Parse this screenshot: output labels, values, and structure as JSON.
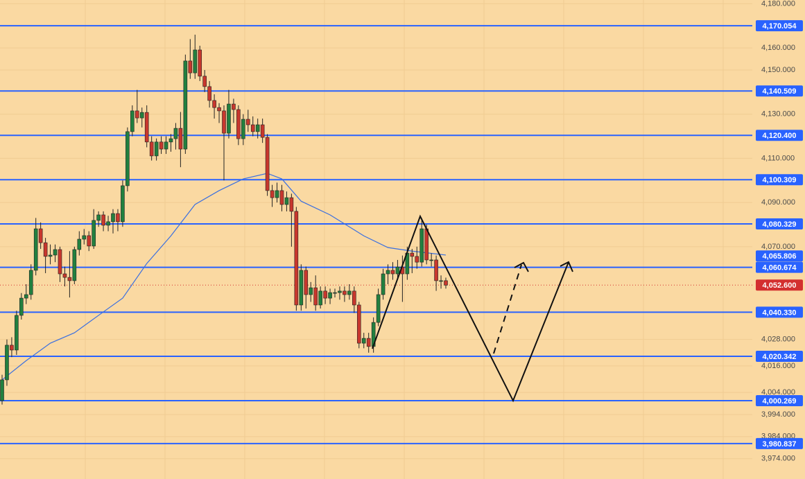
{
  "chart_data": {
    "type": "candlestick",
    "ylim": [
      3964.8,
      4181.7
    ],
    "yticks": [
      {
        "value": 4180,
        "label": "4,180.000"
      },
      {
        "value": 4160,
        "label": "4,160.000"
      },
      {
        "value": 4150,
        "label": "4,150.000"
      },
      {
        "value": 4130,
        "label": "4,130.000"
      },
      {
        "value": 4110,
        "label": "4,110.000"
      },
      {
        "value": 4090,
        "label": "4,090.000"
      },
      {
        "value": 4070,
        "label": "4,070.000"
      },
      {
        "value": 4028,
        "label": "4,028.000"
      },
      {
        "value": 4016,
        "label": "4,016.000"
      },
      {
        "value": 4004,
        "label": "4,004.000"
      },
      {
        "value": 3994,
        "label": "3,994.000"
      },
      {
        "value": 3984,
        "label": "3,984.000"
      },
      {
        "value": 3974,
        "label": "3,974.000"
      }
    ],
    "grid": true,
    "up_color": "#22803f",
    "down_color": "#c8372d",
    "open": [
      4000.3,
      4009.7,
      4025.4,
      4023.2,
      4038.9,
      4046.7,
      4048.3,
      4059.3,
      4078.1,
      4071.8,
      4065.6,
      4066.2,
      4068.7,
      4057.7,
      4056.1,
      4054.6,
      4068.7,
      4073.4,
      4075.0,
      4070.3,
      4081.9,
      4084.4,
      4079.7,
      4081.3,
      4085.0,
      4081.3,
      4097.6,
      4122.1,
      4131.5,
      4128.3,
      4130.8,
      4117.4,
      4111.1,
      4117.4,
      4114.2,
      4117.4,
      4118.9,
      4123.6,
      4114.2,
      4154.1,
      4148.7,
      4159.1,
      4147.2,
      4142.5,
      4136.2,
      4133.0,
      4131.5,
      4121.4,
      4134.6,
      4132.1,
      4118.9,
      4127.7,
      4125.2,
      4122.1,
      4125.2,
      4119.5,
      4095.4,
      4092.2,
      4095.4,
      4089.1,
      4092.2,
      4086.0,
      4043.6,
      4059.3,
      4048.3,
      4051.4,
      4043.6,
      4049.9,
      4046.7,
      4049.2,
      4049.2,
      4049.9,
      4048.3,
      4049.9,
      4043.6,
      4026.3,
      4028.5,
      4024.8,
      4035.7,
      4048.3,
      4057.7,
      4059.3,
      4057.7,
      4060.8,
      4057.7,
      4067.1,
      4065.6,
      4063.0,
      4078.1,
      4064.0,
      4064.0,
      4054.6,
      4054.6
    ],
    "high": [
      4012,
      4028,
      4029,
      4041,
      4049,
      4053,
      4062,
      4083,
      4081,
      4074,
      4071,
      4071,
      4070,
      4061,
      4068,
      4070,
      4077,
      4078,
      4077,
      4087,
      4086,
      4086,
      4084,
      4087,
      4087,
      4100,
      4124,
      4134,
      4141,
      4133,
      4134,
      4120,
      4119,
      4120,
      4120,
      4121,
      4126,
      4131,
      4157,
      4164,
      4166,
      4161,
      4150,
      4145,
      4139,
      4135,
      4134,
      4141,
      4137,
      4134,
      4130,
      4132,
      4129,
      4128,
      4128,
      4121,
      4098,
      4099,
      4098,
      4095,
      4094,
      4088,
      4062,
      4061,
      4054,
      4057,
      4052,
      4052,
      4051,
      4051,
      4052,
      4052,
      4053,
      4052,
      4045,
      4031,
      4031,
      4038,
      4051,
      4060,
      4062,
      4063,
      4064,
      4066,
      4070,
      4069,
      4070,
      4083,
      4080,
      4067,
      4066,
      4057,
      4056
    ],
    "low": [
      3998.5,
      4007,
      4020,
      4021,
      4037,
      4044,
      4046,
      4057,
      4069,
      4058,
      4062,
      4063,
      4054,
      4052,
      4047,
      4053,
      4066,
      4071,
      4068,
      4069,
      4079,
      4077,
      4077,
      4076,
      4077,
      4079,
      4095,
      4120,
      4126,
      4124,
      4115,
      4109,
      4109,
      4112,
      4112,
      4113,
      4114,
      4106,
      4112,
      4146,
      4146,
      4145,
      4140,
      4133,
      4128,
      4126,
      4100,
      4119,
      4126,
      4116,
      4116,
      4122,
      4120,
      4119,
      4117,
      4093,
      4088,
      4090,
      4086,
      4086,
      4070,
      4041,
      4041,
      4042,
      4045,
      4041,
      4042,
      4044,
      4044,
      4047,
      4046,
      4045,
      4046,
      4040,
      4024,
      4024,
      4022,
      4022,
      4034,
      4046,
      4053,
      4055,
      4055,
      4045,
      4055,
      4058,
      4060,
      4061,
      4062,
      4061,
      4050,
      4051,
      4051
    ],
    "close": [
      4009.7,
      4025.4,
      4023.2,
      4038.9,
      4046.7,
      4048.3,
      4059.3,
      4078.1,
      4071.8,
      4065.6,
      4066.2,
      4068.7,
      4057.7,
      4056.1,
      4054.6,
      4068.7,
      4073.4,
      4075.0,
      4070.3,
      4081.9,
      4084.4,
      4079.7,
      4081.3,
      4085.0,
      4081.3,
      4097.6,
      4122.1,
      4131.5,
      4128.3,
      4130.8,
      4117.4,
      4111.1,
      4117.4,
      4114.2,
      4117.4,
      4118.9,
      4123.6,
      4114.2,
      4154.1,
      4148.7,
      4159.1,
      4147.2,
      4142.5,
      4136.2,
      4133.0,
      4131.5,
      4121.4,
      4134.6,
      4132.1,
      4118.9,
      4127.7,
      4125.2,
      4122.1,
      4125.2,
      4119.5,
      4095.4,
      4092.2,
      4095.4,
      4089.1,
      4092.2,
      4086.0,
      4043.6,
      4059.3,
      4048.3,
      4051.4,
      4043.6,
      4049.9,
      4046.7,
      4049.2,
      4049.2,
      4049.9,
      4048.3,
      4049.9,
      4043.6,
      4026.3,
      4028.5,
      4024.8,
      4035.7,
      4048.3,
      4057.7,
      4059.3,
      4057.7,
      4060.8,
      4057.7,
      4067.1,
      4065.6,
      4063.0,
      4078.1,
      4064.0,
      4064.0,
      4054.6,
      4054.6,
      4052.6
    ],
    "moving_average": {
      "color": "#3a6fe0",
      "x": [
        0,
        5,
        10,
        15,
        20,
        25,
        30,
        35,
        40,
        45,
        50,
        55,
        58,
        62,
        68,
        75,
        80,
        85,
        92
      ],
      "values": [
        4009.7,
        4018.4,
        4026.3,
        4031.0,
        4038.9,
        4046.7,
        4062.4,
        4074.9,
        4089.1,
        4095.4,
        4100.7,
        4103.2,
        4100.7,
        4090.6,
        4084.4,
        4074.9,
        4069.6,
        4068.0,
        4066.2
      ],
      "label": {
        "value": 4065.806,
        "label": "4,065.806"
      }
    },
    "levels": [
      {
        "value": 4170.054,
        "label": "4,170.054"
      },
      {
        "value": 4140.509,
        "label": "4,140.509"
      },
      {
        "value": 4120.4,
        "label": "4,120.400"
      },
      {
        "value": 4100.309,
        "label": "4,100.309"
      },
      {
        "value": 4080.329,
        "label": "4,080.329"
      },
      {
        "value": 4060.674,
        "label": "4,060.674"
      },
      {
        "value": 4040.33,
        "label": "4,040.330"
      },
      {
        "value": 4020.342,
        "label": "4,020.342"
      },
      {
        "value": 4000.269,
        "label": "4,000.269"
      },
      {
        "value": 3980.837,
        "label": "3,980.837"
      }
    ],
    "level_color": "#2962ff",
    "last_price": {
      "value": 4052.6,
      "label": "4,052.600",
      "color": "#d32f2f"
    }
  }
}
